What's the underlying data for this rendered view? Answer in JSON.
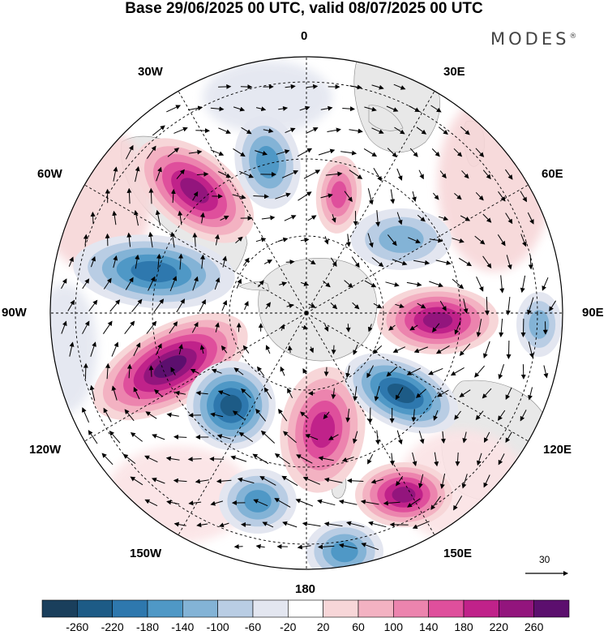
{
  "title": "Base 29/06/2025 00 UTC, valid 08/07/2025 00 UTC",
  "brand": "MODES",
  "brand_mark": "®",
  "longitude_labels": {
    "n0": "0",
    "e30": "30E",
    "e60": "60E",
    "e90": "90E",
    "e120": "120E",
    "e150": "150E",
    "s180": "180",
    "w150": "150W",
    "w120": "120W",
    "w90": "90W",
    "w60": "60W",
    "w30": "30W"
  },
  "vector_scale_label": "30",
  "colorbar": {
    "ticks": [
      "-260",
      "-220",
      "-180",
      "-140",
      "-100",
      "-60",
      "-20",
      "20",
      "60",
      "100",
      "140",
      "180",
      "220",
      "260"
    ],
    "colors": [
      "#1a3f5c",
      "#1d5b86",
      "#2e78ae",
      "#4f98c6",
      "#83b3d6",
      "#b9cde4",
      "#e3e6f0",
      "#ffffff",
      "#f7d6d8",
      "#f3b2c2",
      "#ec84ae",
      "#df4f9c",
      "#c0228a",
      "#93157d",
      "#5c0f6e"
    ]
  },
  "colors": {
    "land": "#e8e8e8",
    "grid": "#000000",
    "arrow": "#000000"
  },
  "anomaly_centers": [
    {
      "id": "pos-atlantic-sw",
      "sign": "positive",
      "level": 220
    },
    {
      "id": "neg-atlantic-mid",
      "sign": "negative",
      "level": 140
    },
    {
      "id": "pos-prime-meridian",
      "sign": "positive",
      "level": 140
    },
    {
      "id": "neg-indian-west",
      "sign": "negative",
      "level": 100
    },
    {
      "id": "neg-south-america-east",
      "sign": "negative",
      "level": 180
    },
    {
      "id": "pos-indian-ocean",
      "sign": "positive",
      "level": 220
    },
    {
      "id": "neg-east-indian",
      "sign": "negative",
      "level": 100
    },
    {
      "id": "pos-pacific-southeast",
      "sign": "positive",
      "level": 260
    },
    {
      "id": "neg-pacific-central",
      "sign": "negative",
      "level": 220
    },
    {
      "id": "pos-ross-sea",
      "sign": "positive",
      "level": 180
    },
    {
      "id": "neg-australia-south",
      "sign": "negative",
      "level": 220
    },
    {
      "id": "pos-tasman",
      "sign": "positive",
      "level": 220
    },
    {
      "id": "neg-pacific-south-west",
      "sign": "negative",
      "level": 140
    },
    {
      "id": "neg-pacific-north",
      "sign": "negative",
      "level": 140
    }
  ]
}
